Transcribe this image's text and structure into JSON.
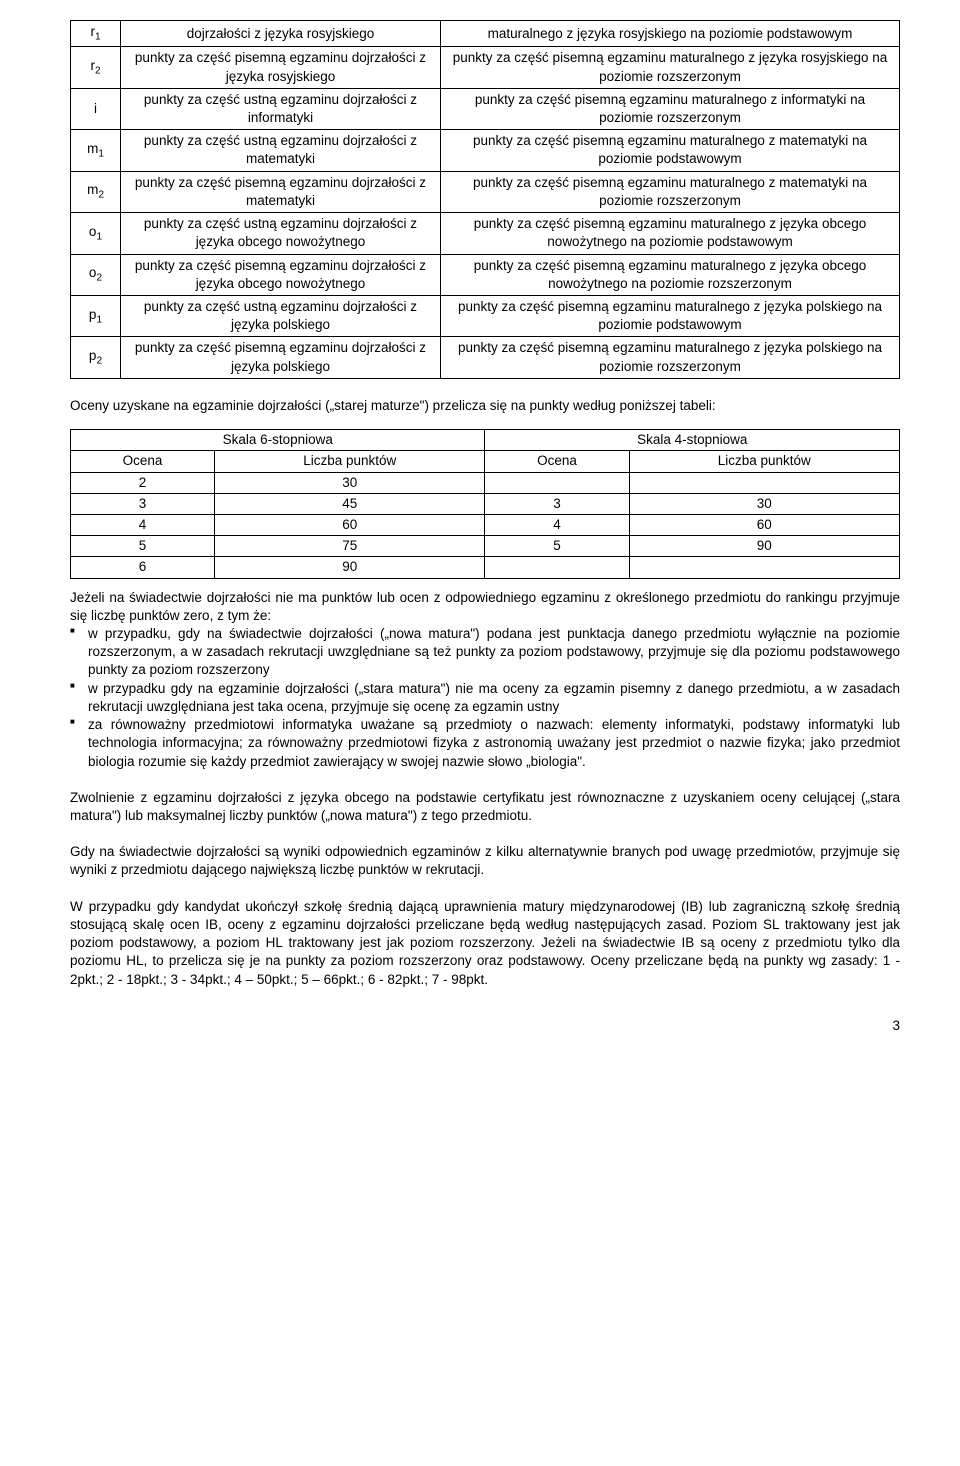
{
  "mainTable": {
    "rows": [
      {
        "sym": "r<sub>1</sub>",
        "c2": "dojrzałości z języka rosyjskiego",
        "c3": "maturalnego z języka rosyjskiego na poziomie podstawowym"
      },
      {
        "sym": "r<sub>2</sub>",
        "c2": "punkty za część pisemną egzaminu dojrzałości z języka rosyjskiego",
        "c3": "punkty za część pisemną egzaminu maturalnego z języka rosyjskiego na poziomie rozszerzonym"
      },
      {
        "sym": "i",
        "c2": "punkty za część ustną egzaminu dojrzałości z informatyki",
        "c3": "punkty za część pisemną egzaminu maturalnego z informatyki na poziomie rozszerzonym"
      },
      {
        "sym": "m<sub>1</sub>",
        "c2": "punkty za część ustną egzaminu dojrzałości z matematyki",
        "c3": "punkty za część pisemną egzaminu maturalnego z matematyki na poziomie podstawowym"
      },
      {
        "sym": "m<sub>2</sub>",
        "c2": "punkty za część pisemną egzaminu dojrzałości z matematyki",
        "c3": "punkty za część pisemną egzaminu maturalnego z matematyki na poziomie rozszerzonym"
      },
      {
        "sym": "o<sub>1</sub>",
        "c2": "punkty za część ustną egzaminu dojrzałości z języka obcego nowożytnego",
        "c3": "punkty za część pisemną egzaminu maturalnego z języka obcego nowożytnego na poziomie podstawowym"
      },
      {
        "sym": "o<sub>2</sub>",
        "c2": "punkty za część pisemną egzaminu dojrzałości z języka obcego nowożytnego",
        "c3": "punkty za część pisemną egzaminu maturalnego z języka obcego nowożytnego na poziomie rozszerzonym"
      },
      {
        "sym": "p<sub>1</sub>",
        "c2": "punkty za część ustną egzaminu dojrzałości z języka polskiego",
        "c3": "punkty za część pisemną egzaminu maturalnego z języka polskiego na poziomie podstawowym"
      },
      {
        "sym": "p<sub>2</sub>",
        "c2": "punkty za część pisemną egzaminu dojrzałości z języka polskiego",
        "c3": "punkty za część pisemną egzaminu maturalnego z języka polskiego na poziomie rozszerzonym"
      }
    ]
  },
  "paragraph1": "Oceny uzyskane na egzaminie dojrzałości („starej maturze\") przelicza się na punkty według poniższej tabeli:",
  "smallTable": {
    "head1a": "Skala  6-stopniowa",
    "head1b": "Skala  4-stopniowa",
    "head2a": "Ocena",
    "head2b": "Liczba punktów",
    "head2c": "Ocena",
    "head2d": "Liczba punktów",
    "rows": [
      [
        "2",
        "30",
        "",
        ""
      ],
      [
        "3",
        "45",
        "3",
        "30"
      ],
      [
        "4",
        "60",
        "4",
        "60"
      ],
      [
        "5",
        "75",
        "5",
        "90"
      ],
      [
        "6",
        "90",
        "",
        ""
      ]
    ]
  },
  "paragraph2": "Jeżeli na świadectwie dojrzałości nie ma punktów lub ocen z odpowiedniego egzaminu z określonego przedmiotu do rankingu przyjmuje się liczbę punktów zero, z tym że:",
  "bullets": [
    "w przypadku, gdy na świadectwie dojrzałości („nowa matura\") podana jest punktacja danego przedmiotu wyłącznie na poziomie rozszerzonym, a w zasadach rekrutacji uwzględniane są też punkty za poziom podstawowy, przyjmuje się dla poziomu podstawowego punkty za poziom rozszerzony",
    "w przypadku gdy na egzaminie dojrzałości („stara matura\") nie ma oceny za egzamin pisemny z danego przedmiotu, a w zasadach rekrutacji uwzględniana jest taka ocena, przyjmuje się ocenę za egzamin ustny",
    "za równoważny przedmiotowi informatyka uważane są przedmioty o nazwach: elementy informatyki, podstawy informatyki lub technologia informacyjna; za równoważny przedmiotowi fizyka z astronomią uważany jest przedmiot o nazwie fizyka; jako przedmiot biologia rozumie się każdy przedmiot zawierający w swojej nazwie słowo „biologia\"."
  ],
  "paragraph3": "Zwolnienie z egzaminu dojrzałości z języka obcego na podstawie certyfikatu jest równoznaczne z uzyskaniem oceny celującej („stara matura\") lub maksymalnej liczby punktów („nowa matura\") z tego przedmiotu.",
  "paragraph4": "Gdy na świadectwie dojrzałości są wyniki odpowiednich egzaminów z kilku alternatywnie branych pod uwagę przedmiotów, przyjmuje się wyniki z przedmiotu dającego największą liczbę punktów w rekrutacji.",
  "paragraph5": "W przypadku gdy kandydat ukończył szkołę średnią dającą uprawnienia matury międzynarodowej (IB) lub zagraniczną szkołę średnią stosującą skalę ocen IB, oceny z egzaminu dojrzałości przeliczane będą według następujących zasad. Poziom SL traktowany jest jak poziom podstawowy, a poziom HL traktowany jest jak poziom rozszerzony. Jeżeli na świadectwie IB są oceny z przedmiotu tylko dla poziomu HL, to przelicza  się je na punkty za poziom rozszerzony oraz podstawowy. Oceny przeliczane będą na punkty wg zasady: 1 - 2pkt.; 2 - 18pkt.; 3 - 34pkt.; 4 – 50pkt.;  5 – 66pkt.; 6 - 82pkt.; 7 - 98pkt.",
  "pageNumber": "3"
}
